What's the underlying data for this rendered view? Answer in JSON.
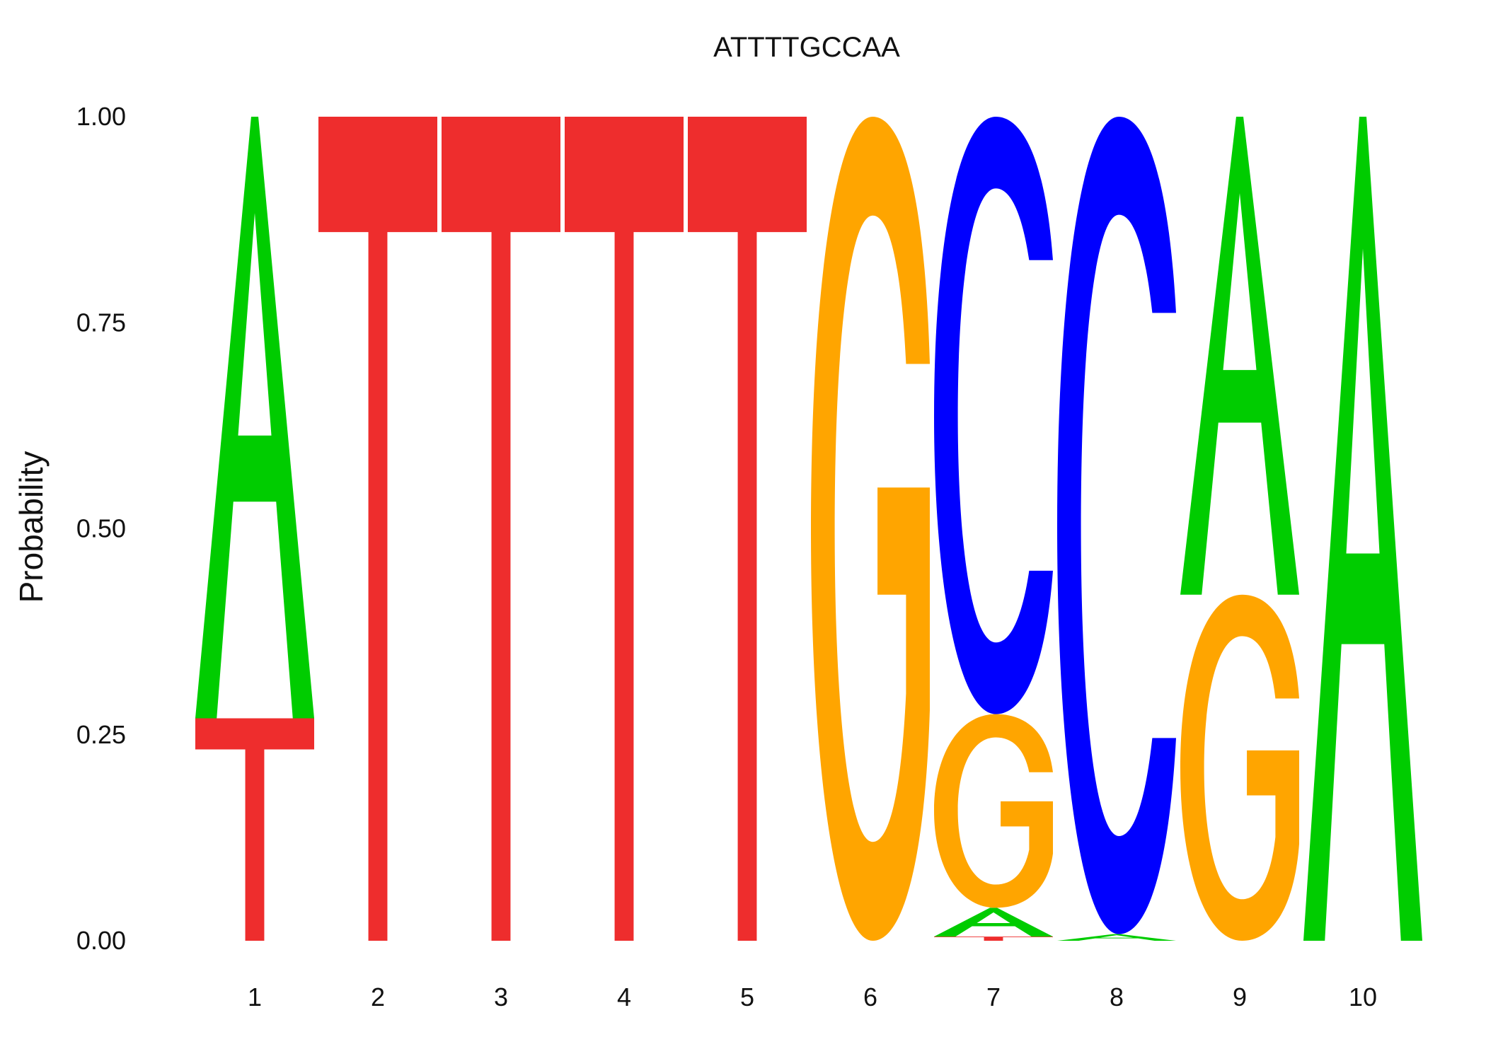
{
  "chart_data": {
    "type": "sequence-logo",
    "title": "ATTTTGCCAA",
    "ylabel": "Probability",
    "xlabel": "",
    "ylim": [
      0,
      1
    ],
    "y_ticks": [
      "0.00",
      "0.25",
      "0.50",
      "0.75",
      "1.00"
    ],
    "y_tick_values": [
      0,
      0.25,
      0.5,
      0.75,
      1.0
    ],
    "x_ticks": [
      "1",
      "2",
      "3",
      "4",
      "5",
      "6",
      "7",
      "8",
      "9",
      "10"
    ],
    "colors": {
      "A": "#00cc00",
      "C": "#0000ff",
      "G": "#ffa500",
      "T": "#ee2d2d"
    },
    "positions": [
      {
        "position": "1",
        "stack": [
          {
            "letter": "T",
            "p": 0.27
          },
          {
            "letter": "A",
            "p": 0.73
          }
        ]
      },
      {
        "position": "2",
        "stack": [
          {
            "letter": "T",
            "p": 1.0
          }
        ]
      },
      {
        "position": "3",
        "stack": [
          {
            "letter": "T",
            "p": 1.0
          }
        ]
      },
      {
        "position": "4",
        "stack": [
          {
            "letter": "T",
            "p": 1.0
          }
        ]
      },
      {
        "position": "5",
        "stack": [
          {
            "letter": "T",
            "p": 1.0
          }
        ]
      },
      {
        "position": "6",
        "stack": [
          {
            "letter": "G",
            "p": 1.0
          }
        ]
      },
      {
        "position": "7",
        "stack": [
          {
            "letter": "T",
            "p": 0.005
          },
          {
            "letter": "A",
            "p": 0.035
          },
          {
            "letter": "G",
            "p": 0.235
          },
          {
            "letter": "C",
            "p": 0.725
          }
        ]
      },
      {
        "position": "8",
        "stack": [
          {
            "letter": "A",
            "p": 0.008
          },
          {
            "letter": "C",
            "p": 0.992
          }
        ]
      },
      {
        "position": "9",
        "stack": [
          {
            "letter": "G",
            "p": 0.42
          },
          {
            "letter": "A",
            "p": 0.58
          }
        ]
      },
      {
        "position": "10",
        "stack": [
          {
            "letter": "A",
            "p": 1.0
          }
        ]
      }
    ]
  }
}
